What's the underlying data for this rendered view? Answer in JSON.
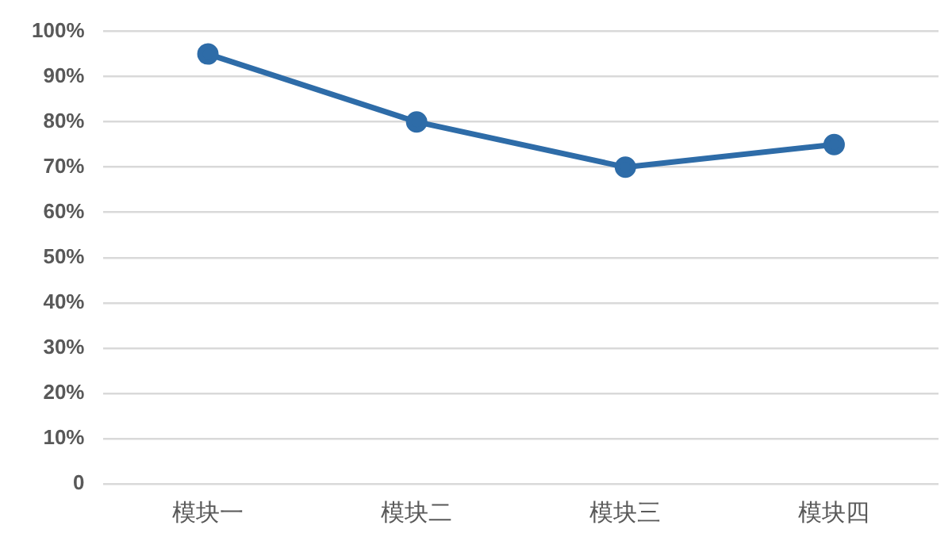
{
  "chart_data": {
    "type": "line",
    "categories": [
      "模块一",
      "模块二",
      "模块三",
      "模块四"
    ],
    "series": [
      {
        "color": "#2e6ca8",
        "values": [
          95,
          80,
          70,
          75
        ]
      }
    ],
    "ylim": [
      0,
      100
    ],
    "yticks": [
      0,
      {
        "value": 10,
        "label": "10%"
      },
      {
        "value": 20,
        "label": "20%"
      },
      {
        "value": 30,
        "label": "30%"
      },
      {
        "value": 40,
        "label": "40%"
      },
      {
        "value": 50,
        "label": "50%"
      },
      {
        "value": 60,
        "label": "60%"
      },
      {
        "value": 70,
        "label": "70%"
      },
      {
        "value": 80,
        "label": "80%"
      },
      {
        "value": 90,
        "label": "90%"
      },
      {
        "value": 100,
        "label": "100%"
      }
    ],
    "grid": "y",
    "legend": false,
    "marker": "circle",
    "line_style": "solid"
  }
}
